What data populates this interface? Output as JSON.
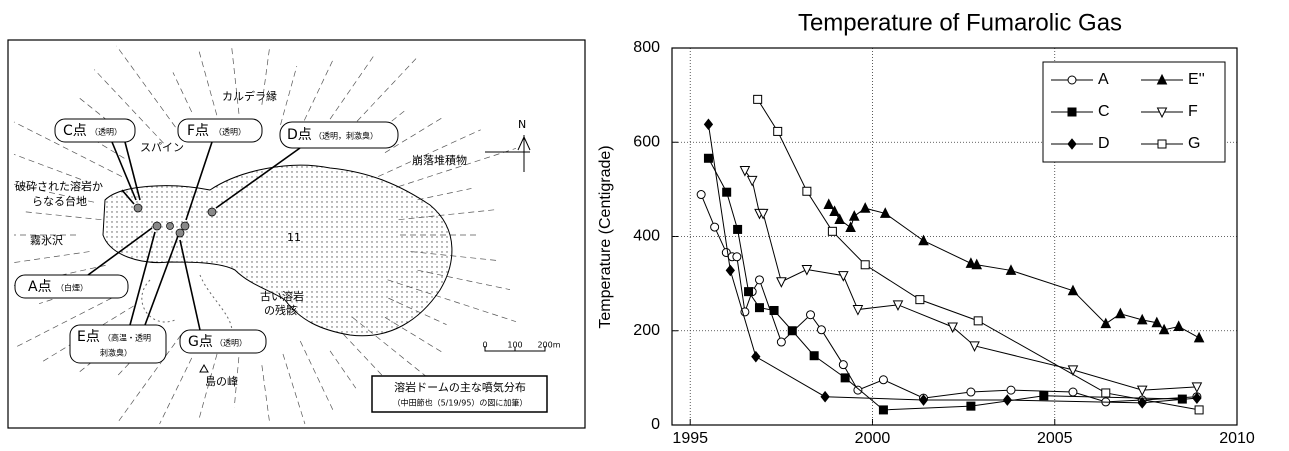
{
  "map": {
    "caldera": "カルデラ縁",
    "spine": "スパイン",
    "debris": "崩落堆積物",
    "plateau": [
      "破砕された溶岩か",
      "らなる台地"
    ],
    "valley": "霧氷沢",
    "number": "11",
    "old_lava": [
      "古い溶岩",
      "の残骸"
    ],
    "peak": "島の峰",
    "north": "N",
    "scale": [
      "0",
      "100",
      "200m"
    ],
    "caption": "溶岩ドームの主な噴気分布",
    "source": "（中田節也（5/19/95）の図に加筆）",
    "points": [
      {
        "name": "C点",
        "note": [
          "（透明）"
        ]
      },
      {
        "name": "F点",
        "note": [
          "（透明）"
        ]
      },
      {
        "name": "D点",
        "note": [
          "（透明，刺激臭）"
        ]
      },
      {
        "name": "A点",
        "note": [
          "（白煙）"
        ]
      },
      {
        "name": "E点",
        "note": [
          "（高温・透明",
          "刺激臭）"
        ]
      },
      {
        "name": "G点",
        "note": [
          "（透明）"
        ]
      }
    ]
  },
  "chart_data": {
    "type": "line",
    "title": "Temperature of Fumarolic Gas",
    "y_label": "Temperature (Centigrade)",
    "xlim": [
      1994.5,
      2010
    ],
    "xticks": [
      1995,
      2000,
      2005,
      2010
    ],
    "ylim": [
      0,
      800
    ],
    "yticks": [
      0,
      200,
      400,
      600,
      800
    ],
    "grid": true,
    "legend": "upper right",
    "series": [
      {
        "name": "A",
        "color": "#000000",
        "marker": "circle",
        "filled": false,
        "x": [
          1995.3,
          1995.67,
          1995.99,
          1996.15,
          1996.28,
          1996.5,
          1996.7,
          1996.9,
          1997.5,
          1998.3,
          1998.6,
          1999.2,
          1999.6,
          2000.3,
          2001.4,
          2002.7,
          2003.8,
          2005.5,
          2006.4,
          2007.4,
          2008.9
        ],
        "values": [
          489,
          420,
          366,
          357,
          357,
          240,
          283,
          308,
          176,
          234,
          202,
          128,
          74,
          96,
          57,
          70,
          74,
          70,
          49,
          53,
          60
        ]
      },
      {
        "name": "C",
        "color": "#000000",
        "marker": "square",
        "filled": true,
        "x": [
          1995.5,
          1996.0,
          1996.3,
          1996.6,
          1996.9,
          1997.3,
          1997.8,
          1998.4,
          1999.25,
          2000.3,
          2002.7,
          2004.7,
          2008.5
        ],
        "values": [
          566,
          494,
          415,
          283,
          249,
          243,
          200,
          147,
          100,
          32,
          40,
          62,
          55
        ]
      },
      {
        "name": "D",
        "color": "#000000",
        "marker": "diamond",
        "filled": true,
        "x": [
          1995.5,
          1996.1,
          1996.8,
          1998.7,
          2001.4,
          2003.7,
          2007.4,
          2008.9
        ],
        "values": [
          638,
          328,
          145,
          60,
          53,
          53,
          47,
          57
        ]
      },
      {
        "name": "E''",
        "color": "#000000",
        "marker": "triangle-up",
        "filled": true,
        "x": [
          1998.8,
          1998.96,
          1999.1,
          1999.4,
          1999.5,
          1999.8,
          2000.35,
          2001.4,
          2002.7,
          2002.86,
          2003.8,
          2005.5,
          2006.4,
          2006.8,
          2007.4,
          2007.8,
          2008.0,
          2008.4,
          2008.96
        ],
        "values": [
          468,
          453,
          436,
          419,
          443,
          460,
          449,
          391,
          343,
          340,
          328,
          285,
          215,
          236,
          223,
          217,
          202,
          209,
          185
        ]
      },
      {
        "name": "F",
        "color": "#000000",
        "marker": "triangle-down",
        "filled": false,
        "x": [
          1996.5,
          1996.7,
          1996.9,
          1997.0,
          1997.5,
          1998.2,
          1999.2,
          1999.6,
          2000.7,
          2002.2,
          2002.8,
          2005.5,
          2007.4,
          2008.9
        ],
        "values": [
          540,
          519,
          449,
          449,
          304,
          330,
          317,
          245,
          255,
          208,
          168,
          117,
          74,
          81
        ]
      },
      {
        "name": "G",
        "color": "#000000",
        "marker": "square",
        "filled": false,
        "x": [
          1996.85,
          1997.4,
          1998.2,
          1998.9,
          1999.8,
          2001.3,
          2002.9,
          2006.4,
          2008.96
        ],
        "values": [
          691,
          623,
          496,
          411,
          340,
          266,
          221,
          68,
          32
        ]
      }
    ]
  }
}
